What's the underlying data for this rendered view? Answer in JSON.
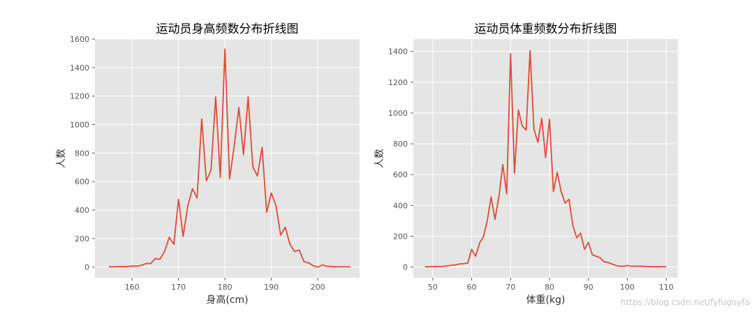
{
  "chart_data": [
    {
      "type": "line",
      "title": "运动员身高频数分布折线图",
      "xlabel": "身高(cm)",
      "ylabel": "人数",
      "xlim": [
        152,
        209
      ],
      "ylim": [
        -75,
        1600
      ],
      "xticks": [
        160,
        170,
        180,
        190,
        200
      ],
      "yticks": [
        0,
        200,
        400,
        600,
        800,
        1000,
        1200,
        1400,
        1600
      ],
      "grid": true,
      "line_color": "#E24A33",
      "background": "#E5E5E5",
      "x": [
        155,
        156,
        157,
        158,
        159,
        160,
        161,
        162,
        163,
        164,
        165,
        166,
        167,
        168,
        169,
        170,
        171,
        172,
        173,
        174,
        175,
        176,
        177,
        178,
        179,
        180,
        181,
        182,
        183,
        184,
        185,
        186,
        187,
        188,
        189,
        190,
        191,
        192,
        193,
        194,
        195,
        196,
        197,
        198,
        199,
        200,
        201,
        202,
        203,
        204,
        205,
        206,
        207
      ],
      "y": [
        2,
        2,
        3,
        4,
        3,
        8,
        6,
        12,
        25,
        25,
        60,
        55,
        110,
        210,
        160,
        475,
        215,
        430,
        550,
        485,
        1040,
        605,
        680,
        1195,
        630,
        1530,
        620,
        850,
        1120,
        790,
        1195,
        705,
        640,
        840,
        385,
        520,
        430,
        225,
        280,
        160,
        110,
        120,
        40,
        30,
        10,
        0,
        15,
        5,
        5,
        2,
        2,
        2,
        2
      ]
    },
    {
      "type": "line",
      "title": "运动员体重频数分布折线图",
      "xlabel": "体重(kg)",
      "ylabel": "人数",
      "xlim": [
        45,
        113
      ],
      "ylim": [
        -70,
        1480
      ],
      "xticks": [
        50,
        60,
        70,
        80,
        90,
        100,
        110
      ],
      "yticks": [
        0,
        200,
        400,
        600,
        800,
        1000,
        1200,
        1400
      ],
      "grid": true,
      "line_color": "#E24A33",
      "background": "#E5E5E5",
      "x": [
        48,
        49,
        50,
        51,
        52,
        53,
        54,
        55,
        56,
        57,
        58,
        59,
        60,
        61,
        62,
        63,
        64,
        65,
        66,
        67,
        68,
        69,
        70,
        71,
        72,
        73,
        74,
        75,
        76,
        77,
        78,
        79,
        80,
        81,
        82,
        83,
        84,
        85,
        86,
        87,
        88,
        89,
        90,
        91,
        92,
        93,
        94,
        95,
        96,
        97,
        98,
        99,
        100,
        101,
        102,
        103,
        104,
        105,
        106,
        107,
        108,
        109,
        110
      ],
      "y": [
        2,
        2,
        3,
        4,
        3,
        5,
        8,
        12,
        15,
        20,
        22,
        25,
        115,
        70,
        155,
        195,
        300,
        455,
        310,
        460,
        665,
        475,
        1385,
        610,
        1020,
        915,
        890,
        1405,
        895,
        810,
        965,
        710,
        960,
        490,
        615,
        490,
        415,
        440,
        270,
        190,
        220,
        115,
        160,
        80,
        70,
        60,
        35,
        30,
        20,
        10,
        5,
        5,
        10,
        5,
        5,
        5,
        5,
        3,
        3,
        2,
        2,
        2,
        2
      ]
    }
  ],
  "watermark": "https://blog.csdn.net/fyfugoyfa"
}
